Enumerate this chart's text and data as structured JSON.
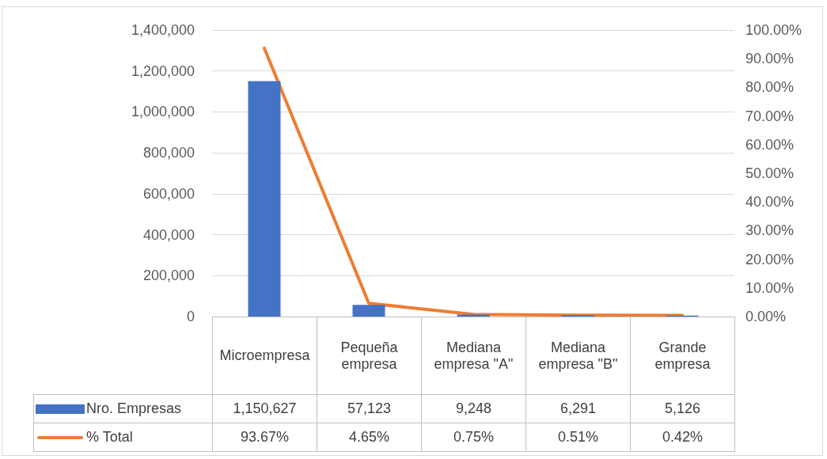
{
  "chart_data": {
    "type": "bar",
    "categories": [
      "Microempresa",
      "Pequeña empresa",
      "Mediana empresa \"A\"",
      "Mediana empresa \"B\"",
      "Grande empresa"
    ],
    "series": [
      {
        "name": "Nro. Empresas",
        "color": "#4472c4",
        "values": [
          1150627,
          57123,
          9248,
          6291,
          5126
        ],
        "value_labels": [
          "1,150,627",
          "57,123",
          "9,248",
          "6,291",
          "5,126"
        ]
      },
      {
        "name": "% Total",
        "type": "line",
        "axis": "y2",
        "color": "#ed7d31",
        "values": [
          93.67,
          4.65,
          0.75,
          0.51,
          0.42
        ],
        "value_labels": [
          "93.67%",
          "4.65%",
          "0.75%",
          "0.51%",
          "0.42%"
        ]
      }
    ],
    "ylim": [
      0,
      1400000
    ],
    "yticks": [
      0,
      {
        "value": 200000,
        "label": "200,000"
      },
      {
        "value": 400000,
        "label": "400,000"
      },
      {
        "value": 600000,
        "label": "600,000"
      },
      {
        "value": 800000,
        "label": "800,000"
      },
      {
        "value": 1000000,
        "label": "1,000,000"
      },
      {
        "value": 1200000,
        "label": "1,200,000"
      },
      {
        "value": 1400000,
        "label": "1,400,000"
      }
    ],
    "y2lim": [
      0,
      100
    ],
    "y2ticks": [
      {
        "value": 0,
        "label": "0.00%"
      },
      {
        "value": 10,
        "label": "10.00%"
      },
      {
        "value": 20,
        "label": "20.00%"
      },
      {
        "value": 30,
        "label": "30.00%"
      },
      {
        "value": 40,
        "label": "40.00%"
      },
      {
        "value": 50,
        "label": "50.00%"
      },
      {
        "value": 60,
        "label": "60.00%"
      },
      {
        "value": 70,
        "label": "70.00%"
      },
      {
        "value": 80,
        "label": "80.00%"
      },
      {
        "value": 90,
        "label": "90.00%"
      },
      {
        "value": 100,
        "label": "100.00%"
      }
    ],
    "grid": "y",
    "legend": "bottom",
    "marker": "none",
    "line_style": "solid"
  }
}
